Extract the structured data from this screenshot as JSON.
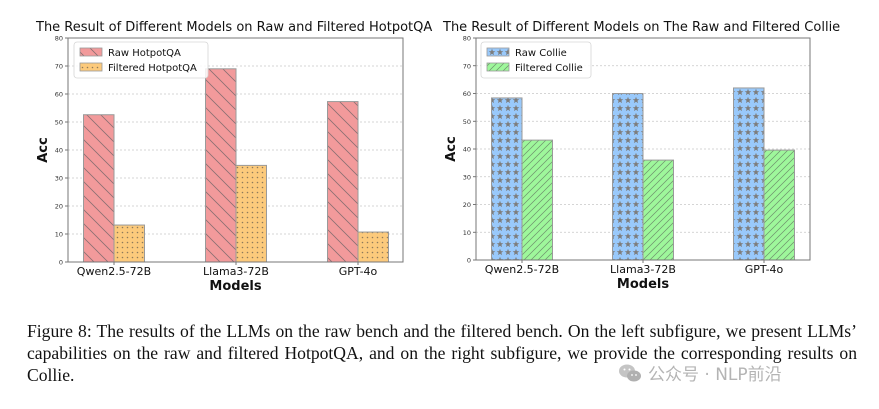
{
  "chart_data": [
    {
      "type": "bar",
      "title": "The Result of Different Models on Raw and Filtered HotpotQA",
      "xlabel": "Models",
      "ylabel": "Acc",
      "ylim": [
        0,
        80
      ],
      "yticks": [
        "0",
        "10",
        "20",
        "30",
        "40",
        "50",
        "60",
        "70",
        "80"
      ],
      "grid": true,
      "legend_position": "top-left",
      "categories": [
        "Qwen2.5-72B",
        "Llama3-72B",
        "GPT-4o"
      ],
      "series": [
        {
          "name": "Raw HotpotQA",
          "values": [
            52.6,
            69.0,
            57.3
          ],
          "color": "#f29a9b",
          "pattern": "backslash-hatch"
        },
        {
          "name": "Filtered HotpotQA",
          "values": [
            13.2,
            34.5,
            10.7
          ],
          "color": "#fcca7c",
          "pattern": "dots"
        }
      ]
    },
    {
      "type": "bar",
      "title": "The Result of Different Models on The Raw and Filtered Collie",
      "xlabel": "Models",
      "ylabel": "Acc",
      "ylim": [
        0,
        80
      ],
      "yticks": [
        "0",
        "10",
        "20",
        "30",
        "40",
        "50",
        "60",
        "70",
        "80"
      ],
      "grid": true,
      "legend_position": "top-left",
      "categories": [
        "Qwen2.5-72B",
        "Llama3-72B",
        "GPT-4o"
      ],
      "series": [
        {
          "name": "Raw Collie",
          "values": [
            58.4,
            60.0,
            62.0
          ],
          "color": "#99c9fb",
          "pattern": "stars"
        },
        {
          "name": "Filtered Collie",
          "values": [
            43.2,
            36.0,
            39.6
          ],
          "color": "#9ef79b",
          "pattern": "slash-hatch"
        }
      ]
    }
  ],
  "caption": "Figure 8: The results of the LLMs on the raw bench and the filtered bench. On the left subfigure, we present LLMs’ capabilities on the raw and filtered HotpotQA, and on the right subfigure, we provide the corresponding results on Collie.",
  "watermark": {
    "text": "公众号 · NLP前沿",
    "icon": "wechat-icon"
  }
}
